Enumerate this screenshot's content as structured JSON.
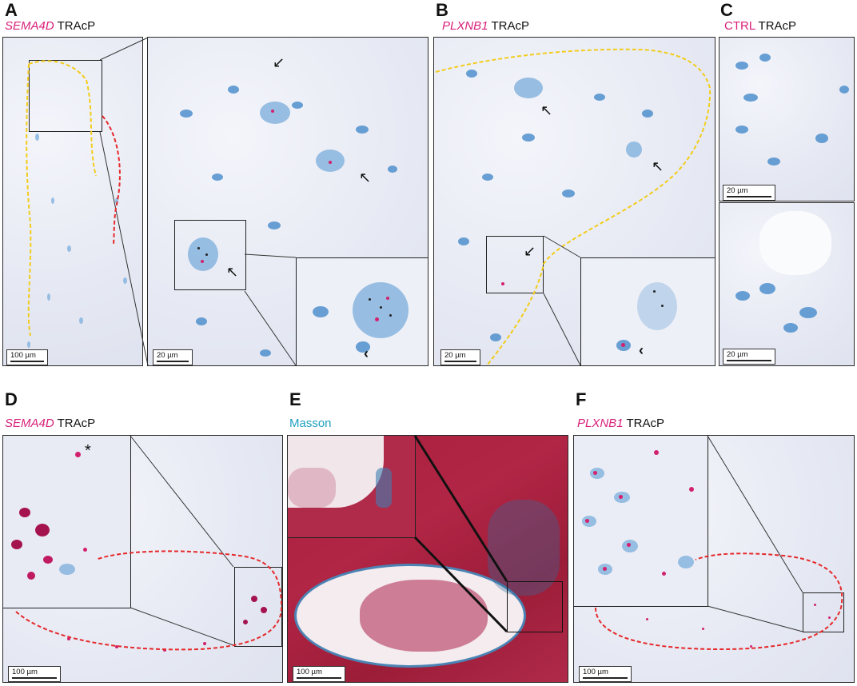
{
  "panels": {
    "A": {
      "letter": "A",
      "label_stain": "SEMA4D",
      "label_tracp": "TRAcP",
      "scale_main": "100 µm",
      "scale_zoom": "20 µm"
    },
    "B": {
      "letter": "B",
      "label_stain": "PLXNB1",
      "label_tracp": "TRAcP",
      "scale": "20 µm"
    },
    "C": {
      "letter": "C",
      "label_stain": "CTRL",
      "label_tracp": "TRAcP",
      "scale_top": "20 µm",
      "scale_bottom": "20 µm"
    },
    "D": {
      "letter": "D",
      "label_stain": "SEMA4D",
      "label_tracp": "TRAcP",
      "scale": "100 µm",
      "asterisk": "*"
    },
    "E": {
      "letter": "E",
      "label_stain": "Masson",
      "scale": "100 µm"
    },
    "F": {
      "letter": "F",
      "label_stain": "PLXNB1",
      "label_tracp": "TRAcP",
      "scale": "100 µm"
    }
  },
  "colors": {
    "stain_magenta": "#d8207a",
    "masson_cyan": "#1f9fc0",
    "outline_yellow": "#f2cc1a",
    "outline_red": "#e5292b",
    "nuclei_blue": "#4f8fcc",
    "masson_red": "#a8203c"
  },
  "icons": [
    "arrow-icon",
    "arrowhead-icon"
  ]
}
